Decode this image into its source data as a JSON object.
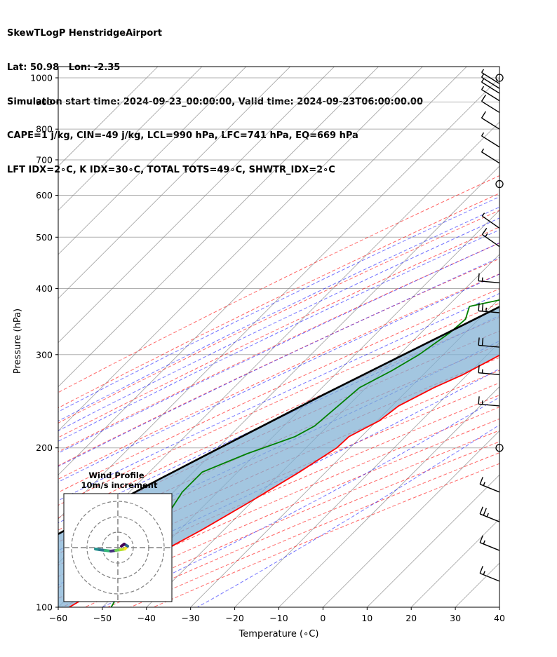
{
  "header": {
    "line1": "SkewTLogP HenstridgeAirport",
    "line2": "Lat: 50.98   Lon: -2.35",
    "line3": "Simulation start time: 2024-09-23_00:00:00, Valid time: 2024-09-23T06:00:00.00",
    "line4": "CAPE=1 j/kg, CIN=-49 j/kg, LCL=990 hPa, LFC=741 hPa, EQ=669 hPa",
    "line5": "LFT IDX=2∘C, K IDX=30∘C, TOTAL TOTS=49∘C, SHWTR_IDX=2∘C"
  },
  "colors": {
    "temperature": "#ff0000",
    "dewpoint": "#008000",
    "parcel": "#000000",
    "cape_fill": "#7fb0d4",
    "dry_adiabat": "#ff0000",
    "moist_adiabat": "#0000ff",
    "mixing_ratio": "#8a2be2",
    "isotherm": "#808080"
  },
  "chart_data": {
    "type": "skew-t log-p",
    "xlabel": "Temperature (∘C)",
    "ylabel": "Pressure (hPa)",
    "xlim": [
      -60,
      40
    ],
    "ylim": [
      1050,
      100
    ],
    "y_scale": "log",
    "grid": true,
    "xticks": [
      "−60",
      "−50",
      "−40",
      "−30",
      "−20",
      "−10",
      "0",
      "10",
      "20",
      "30",
      "40"
    ],
    "yticks": [
      "100",
      "200",
      "300",
      "400",
      "500",
      "600",
      "700",
      "800",
      "900",
      "1000"
    ],
    "temperature_profile": [
      [
        1000,
        15.5
      ],
      [
        950,
        14.8
      ],
      [
        900,
        14.0
      ],
      [
        850,
        12.5
      ],
      [
        800,
        10.8
      ],
      [
        750,
        9.2
      ],
      [
        700,
        7.5
      ],
      [
        650,
        5.8
      ],
      [
        600,
        4.3
      ],
      [
        550,
        2.6
      ],
      [
        500,
        0.5
      ],
      [
        450,
        -2.5
      ],
      [
        400,
        -6.0
      ],
      [
        350,
        -11.0
      ],
      [
        300,
        -17.0
      ],
      [
        275,
        -21.0
      ],
      [
        260,
        -24.6
      ],
      [
        240,
        -28.5
      ],
      [
        225,
        -29.5
      ],
      [
        210,
        -32.8
      ],
      [
        200,
        -33.0
      ],
      [
        180,
        -36.0
      ],
      [
        160,
        -40.0
      ],
      [
        140,
        -45.0
      ],
      [
        125,
        -50.0
      ],
      [
        110,
        -54.0
      ],
      [
        100,
        -57.5
      ]
    ],
    "dewpoint_profile": [
      [
        1000,
        15.0
      ],
      [
        950,
        13.8
      ],
      [
        900,
        12.3
      ],
      [
        850,
        10.0
      ],
      [
        800,
        6.5
      ],
      [
        770,
        3.5
      ],
      [
        730,
        1.5
      ],
      [
        680,
        1.0
      ],
      [
        630,
        0.5
      ],
      [
        600,
        -0.5
      ],
      [
        550,
        -3.0
      ],
      [
        500,
        -6.5
      ],
      [
        450,
        -10.5
      ],
      [
        410,
        -16.5
      ],
      [
        400,
        -20.0
      ],
      [
        370,
        -35.0
      ],
      [
        350,
        -33.0
      ],
      [
        330,
        -33.5
      ],
      [
        300,
        -35.5
      ],
      [
        280,
        -38.0
      ],
      [
        260,
        -41.5
      ],
      [
        220,
        -43.0
      ],
      [
        210,
        -45.0
      ],
      [
        195,
        -52.0
      ],
      [
        180,
        -58.0
      ],
      [
        165,
        -58.0
      ],
      [
        140,
        -55.0
      ],
      [
        120,
        -52.0
      ],
      [
        100,
        -48.0
      ]
    ],
    "parcel_profile": [
      [
        1000,
        15.5
      ],
      [
        990,
        15.2
      ],
      [
        950,
        13.4
      ],
      [
        900,
        11.3
      ],
      [
        850,
        9.0
      ],
      [
        800,
        6.6
      ],
      [
        750,
        4.0
      ],
      [
        700,
        1.2
      ],
      [
        650,
        -1.8
      ],
      [
        600,
        -5.2
      ],
      [
        550,
        -9.0
      ],
      [
        500,
        -13.2
      ],
      [
        450,
        -18.2
      ],
      [
        400,
        -24.0
      ],
      [
        350,
        -30.9
      ],
      [
        300,
        -39.0
      ],
      [
        250,
        -48.5
      ],
      [
        200,
        -59.5
      ],
      [
        175,
        -66.0
      ],
      [
        150,
        -73.0
      ],
      [
        125,
        -80.5
      ],
      [
        100,
        -89.0
      ]
    ],
    "wind_barbs": [
      {
        "p": 1000,
        "type": "calm"
      },
      {
        "p": 975,
        "flags": [
          0.5
        ]
      },
      {
        "p": 955,
        "flags": [
          0.5
        ]
      },
      {
        "p": 935,
        "flags": [
          0.5
        ]
      },
      {
        "p": 905,
        "flags": [
          0.5
        ]
      },
      {
        "p": 860,
        "flags": [
          1
        ]
      },
      {
        "p": 800,
        "flags": [
          1
        ]
      },
      {
        "p": 740,
        "flags": [
          0.5
        ]
      },
      {
        "p": 690,
        "flags": [
          0.5
        ]
      },
      {
        "p": 630,
        "type": "calm"
      },
      {
        "p": 520,
        "flags": [
          0.5
        ]
      },
      {
        "p": 480,
        "flags": [
          1,
          0.5
        ]
      },
      {
        "p": 410,
        "flags": [
          1,
          0.5
        ]
      },
      {
        "p": 360,
        "flags": [
          1,
          1,
          0.5
        ]
      },
      {
        "p": 310,
        "flags": [
          1,
          1
        ]
      },
      {
        "p": 275,
        "flags": [
          1,
          0.5
        ]
      },
      {
        "p": 240,
        "flags": [
          1,
          0.5
        ]
      },
      {
        "p": 200,
        "type": "calm"
      },
      {
        "p": 165,
        "flags": [
          1,
          0.5
        ]
      },
      {
        "p": 145,
        "flags": [
          1,
          1,
          0.5
        ]
      },
      {
        "p": 128,
        "flags": [
          1,
          0.5
        ]
      },
      {
        "p": 112,
        "flags": [
          1,
          0.5
        ]
      }
    ],
    "hodograph": {
      "title": "Wind Profile",
      "subtitle": "10m/s increment",
      "rings": [
        10,
        20,
        30
      ]
    }
  }
}
